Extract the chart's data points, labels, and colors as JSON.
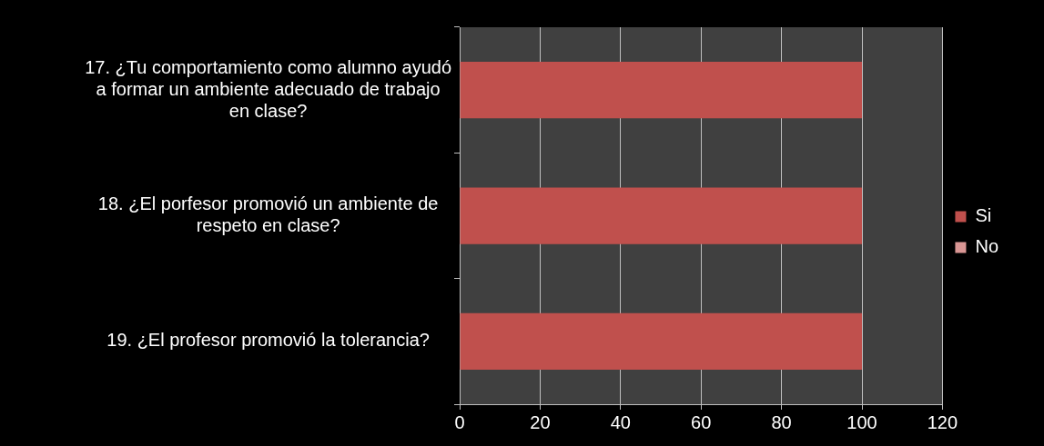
{
  "chart_data": {
    "type": "bar",
    "orientation": "horizontal",
    "stacked": true,
    "categories": [
      "17. ¿Tu comportamiento como alumno ayudó a formar un ambiente adecuado de trabajo en clase?",
      "18. ¿El porfesor promovió un ambiente de respeto en clase?",
      "19. ¿El profesor promovió la tolerancia?"
    ],
    "series": [
      {
        "name": "Si",
        "color": "#c0504d",
        "values": [
          100,
          100,
          100
        ]
      },
      {
        "name": "No",
        "color": "#d99694",
        "values": [
          0,
          0,
          0
        ]
      }
    ],
    "xlim": [
      0,
      120
    ],
    "xticks": [
      0,
      20,
      40,
      60,
      80,
      100,
      120
    ],
    "grid": "x",
    "legend": "right"
  }
}
